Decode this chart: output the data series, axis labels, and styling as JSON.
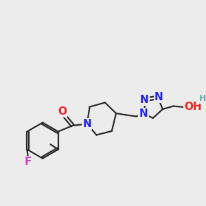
{
  "bg_color": "#ececec",
  "bond_color": "#2a2a2a",
  "bond_width": 1.6,
  "atom_colors": {
    "N": "#2222ee",
    "O": "#ee2222",
    "F": "#cc44bb",
    "H": "#5aacac",
    "C": "#2a2a2a"
  },
  "font_size": 11,
  "font_size_small": 9
}
